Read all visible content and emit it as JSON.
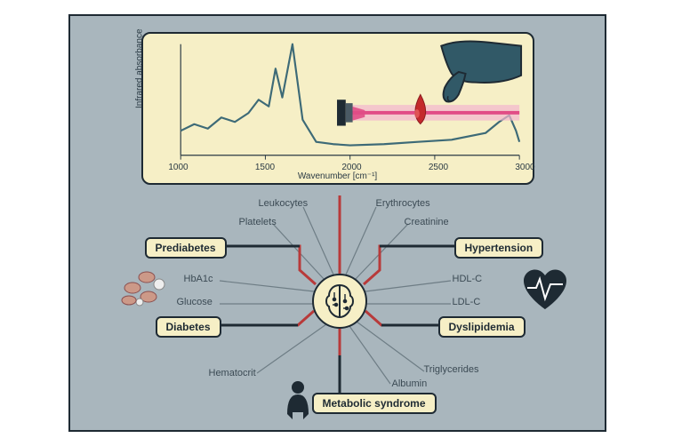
{
  "colors": {
    "pageBg": "#a9b6bd",
    "panelBg": "#f6efc6",
    "stroke": "#1e2a33",
    "series": "#3d6a77",
    "accentRed": "#b83a3a",
    "laserPink": "#f3b7cf",
    "laserCore": "#e14c86",
    "drop": "#c4292c",
    "hand": "#315967",
    "text": "#2a3a44",
    "lineGrey": "#6e7d85"
  },
  "chart": {
    "type": "line",
    "yLabel": "Infrared absorbance",
    "xLabel": "Wavenumber [cm⁻¹]",
    "xlim": [
      1000,
      3000
    ],
    "xticks": [
      1000,
      1500,
      2000,
      2500,
      3000
    ],
    "series": [
      {
        "x": 1000,
        "y": 22
      },
      {
        "x": 1080,
        "y": 28
      },
      {
        "x": 1160,
        "y": 24
      },
      {
        "x": 1240,
        "y": 34
      },
      {
        "x": 1320,
        "y": 30
      },
      {
        "x": 1400,
        "y": 38
      },
      {
        "x": 1460,
        "y": 50
      },
      {
        "x": 1520,
        "y": 44
      },
      {
        "x": 1560,
        "y": 78
      },
      {
        "x": 1600,
        "y": 52
      },
      {
        "x": 1660,
        "y": 100
      },
      {
        "x": 1720,
        "y": 32
      },
      {
        "x": 1800,
        "y": 12
      },
      {
        "x": 1900,
        "y": 10
      },
      {
        "x": 2000,
        "y": 9
      },
      {
        "x": 2200,
        "y": 10
      },
      {
        "x": 2400,
        "y": 12
      },
      {
        "x": 2600,
        "y": 14
      },
      {
        "x": 2800,
        "y": 20
      },
      {
        "x": 2880,
        "y": 30
      },
      {
        "x": 2940,
        "y": 36
      },
      {
        "x": 2980,
        "y": 22
      },
      {
        "x": 3000,
        "y": 12
      }
    ],
    "lineWidth": 2.2
  },
  "pills": {
    "prediabetes": "Prediabetes",
    "diabetes": "Diabetes",
    "hypertension": "Hypertension",
    "dyslipidemia": "Dyslipidemia",
    "metabolic": "Metabolic syndrome"
  },
  "labels": {
    "leukocytes": "Leukocytes",
    "platelets": "Platelets",
    "hba1c": "HbA1c",
    "glucose": "Glucose",
    "hematocrit": "Hematocrit",
    "erythrocytes": "Erythrocytes",
    "creatinine": "Creatinine",
    "hdlc": "HDL-C",
    "ldlc": "LDL-C",
    "triglycerides": "Triglycerides",
    "albumin": "Albumin"
  }
}
